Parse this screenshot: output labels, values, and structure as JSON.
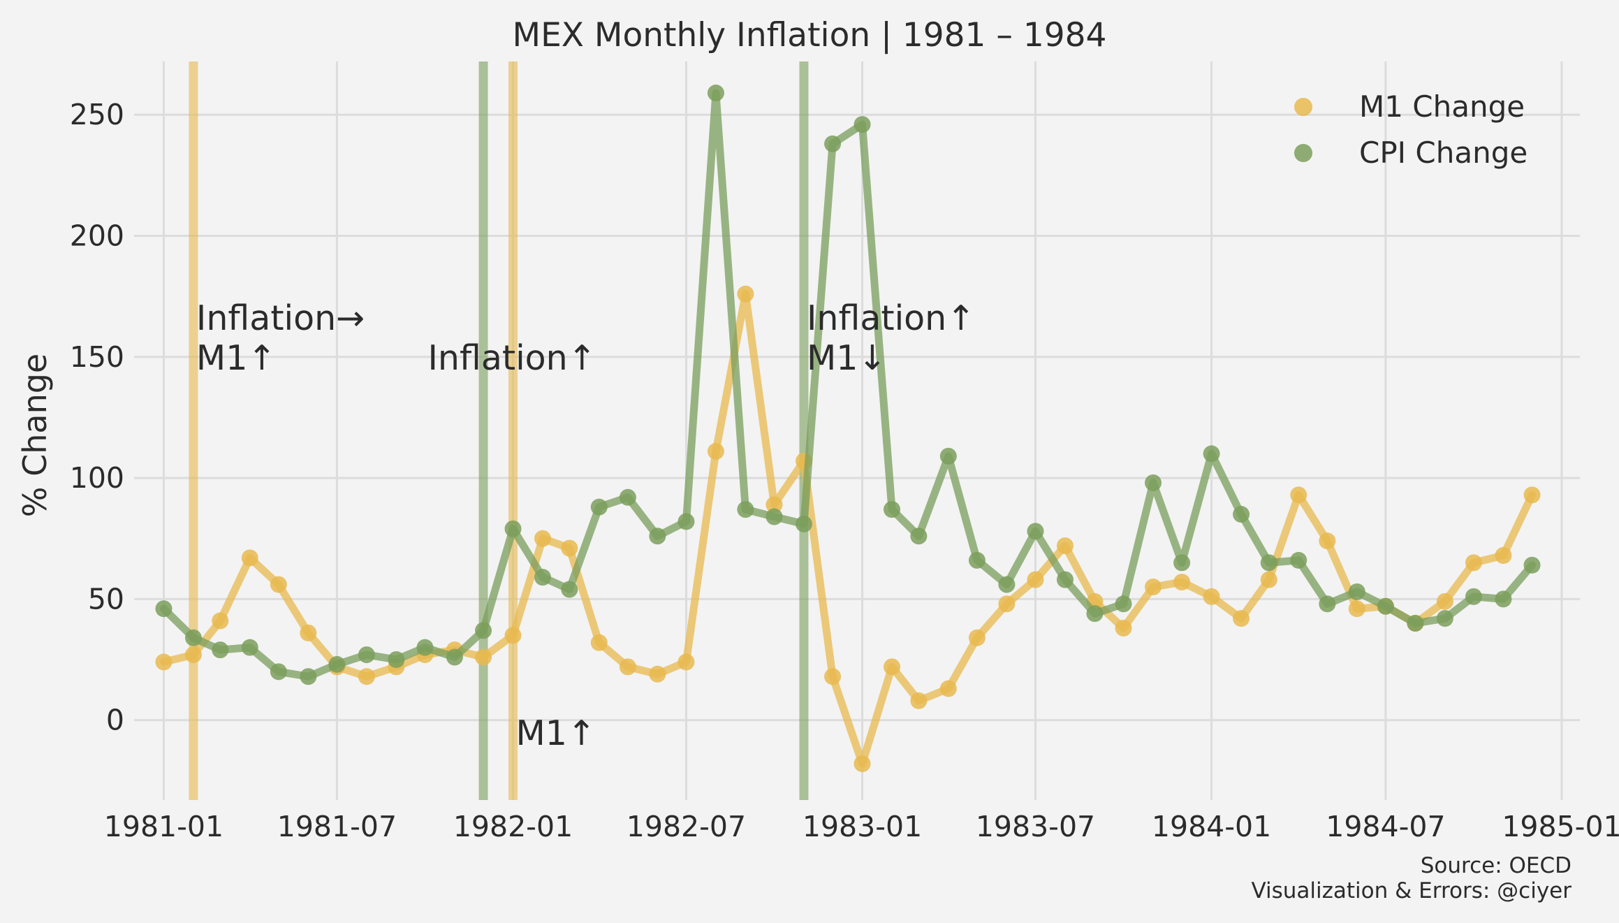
{
  "chart_data": {
    "type": "line",
    "title": "MEX Monthly Inflation | 1981 – 1984",
    "xlabel": "",
    "ylabel": "% Change",
    "ylim": [
      -33,
      272
    ],
    "xlim": [
      "1980-12-01",
      "1985-01-20"
    ],
    "yticks": [
      0,
      50,
      100,
      150,
      200,
      250
    ],
    "xticks": [
      "1981-01",
      "1981-07",
      "1982-01",
      "1982-07",
      "1983-01",
      "1983-07",
      "1984-01",
      "1984-07",
      "1985-01"
    ],
    "grid": true,
    "legend_position": "top-right",
    "colors": {
      "m1": "#e8b94f",
      "cpi": "#7a9e5c",
      "background": "#f3f3f3",
      "grid": "#dcdcdc",
      "text": "#2b2b2b"
    },
    "x": [
      "1981-01",
      "1981-02",
      "1981-03",
      "1981-04",
      "1981-05",
      "1981-06",
      "1981-07",
      "1981-08",
      "1981-09",
      "1981-10",
      "1981-11",
      "1981-12",
      "1982-01",
      "1982-02",
      "1982-03",
      "1982-04",
      "1982-05",
      "1982-06",
      "1982-07",
      "1982-08",
      "1982-09",
      "1982-10",
      "1982-11",
      "1982-12",
      "1983-01",
      "1983-02",
      "1983-03",
      "1983-04",
      "1983-05",
      "1983-06",
      "1983-07",
      "1983-08",
      "1983-09",
      "1983-10",
      "1983-11",
      "1983-12",
      "1984-01",
      "1984-02",
      "1984-03",
      "1984-04",
      "1984-05",
      "1984-06",
      "1984-07",
      "1984-08",
      "1984-09",
      "1984-10",
      "1984-11",
      "1984-12"
    ],
    "series": [
      {
        "name": "M1 Change",
        "key": "m1",
        "values": [
          24,
          27,
          41,
          67,
          56,
          36,
          22,
          18,
          22,
          27,
          29,
          26,
          35,
          75,
          71,
          32,
          22,
          19,
          24,
          111,
          176,
          89,
          107,
          18,
          -18,
          22,
          8,
          13,
          34,
          48,
          58,
          72,
          49,
          38,
          55,
          57,
          51,
          42,
          58,
          93,
          74,
          46,
          47,
          40,
          49,
          65,
          68,
          93
        ]
      },
      {
        "name": "CPI Change",
        "key": "cpi",
        "values": [
          46,
          34,
          29,
          30,
          20,
          18,
          23,
          27,
          25,
          30,
          26,
          37,
          79,
          59,
          54,
          88,
          92,
          76,
          82,
          259,
          87,
          84,
          81,
          238,
          246,
          87,
          76,
          109,
          66,
          56,
          78,
          58,
          44,
          48,
          98,
          65,
          110,
          85,
          65,
          66,
          48,
          53,
          47,
          40,
          42,
          51,
          50,
          64
        ]
      }
    ],
    "vertical_lines": [
      {
        "x": "1981-02",
        "series": "m1"
      },
      {
        "x": "1981-12",
        "series": "cpi"
      },
      {
        "x": "1982-01",
        "series": "m1"
      },
      {
        "x": "1982-11",
        "series": "cpi"
      }
    ],
    "annotations": [
      {
        "lines": [
          "Inflation→",
          "M1↑"
        ],
        "x": "1981-02",
        "y": 150
      },
      {
        "lines": [
          "Inflation↑"
        ],
        "x": "1981-10",
        "y": 150
      },
      {
        "lines": [
          "M1↑"
        ],
        "x": "1982-01",
        "y": -5
      },
      {
        "lines": [
          "Inflation↑",
          "M1↓"
        ],
        "x": "1982-11",
        "y": 150
      }
    ],
    "source_lines": [
      "Source: OECD",
      "Visualization & Errors: @ciyer"
    ]
  }
}
